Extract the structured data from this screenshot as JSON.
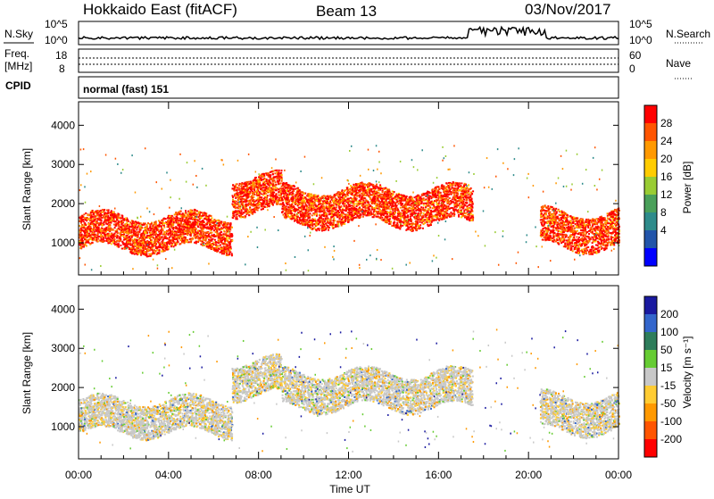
{
  "header": {
    "station": "Hokkaido East (fitACF)",
    "beam": "Beam 13",
    "date": "03/Nov/2017"
  },
  "noise_panel": {
    "left_label": "N.Sky",
    "right_label": "N.Search",
    "left_ticks": [
      "10^5",
      "10^0"
    ],
    "right_ticks": [
      "10^5",
      "10^0"
    ]
  },
  "freq_panel": {
    "left_label_line1": "Freq.",
    "left_label_line2": "[MHz]",
    "right_label": "Nave",
    "left_ticks": [
      "18",
      "8"
    ],
    "right_ticks": [
      "60",
      "0"
    ]
  },
  "cpid_panel": {
    "label": "CPID",
    "value": "normal (fast) 151"
  },
  "chart_data": [
    {
      "type": "heatmap",
      "panel": "power",
      "ylabel": "Slant Range [km]",
      "xlabel": "",
      "ylim": [
        180,
        4600
      ],
      "yticks": [
        "1000",
        "2000",
        "3000",
        "4000"
      ],
      "xticks": [
        "00:00",
        "04:00",
        "08:00",
        "12:00",
        "16:00",
        "20:00",
        "00:00"
      ],
      "colorbar": {
        "label": "Power [dB]",
        "ticks": [
          "28",
          "24",
          "20",
          "16",
          "12",
          "8",
          "4"
        ],
        "colors": [
          "#ff0000",
          "#ff5500",
          "#ff9900",
          "#ffcc00",
          "#99cc33",
          "#4aa05a",
          "#2e8b8b",
          "#2255aa",
          "#0000ff"
        ]
      },
      "bands": [
        {
          "t0": 0.0,
          "t1": 6.8,
          "r0": 850,
          "r1": 1700,
          "level": "high"
        },
        {
          "t0": 6.8,
          "t1": 9.0,
          "r0": 1800,
          "r1": 2700,
          "level": "high"
        },
        {
          "t0": 9.0,
          "t1": 17.5,
          "r0": 1500,
          "r1": 2400,
          "level": "high"
        },
        {
          "t0": 20.5,
          "t1": 24.0,
          "r0": 900,
          "r1": 1800,
          "level": "high"
        }
      ]
    },
    {
      "type": "heatmap",
      "panel": "velocity",
      "ylabel": "Slant Range [km]",
      "xlabel": "Time UT",
      "ylim": [
        180,
        4600
      ],
      "yticks": [
        "1000",
        "2000",
        "3000",
        "4000"
      ],
      "xticks": [
        "00:00",
        "04:00",
        "08:00",
        "12:00",
        "16:00",
        "20:00",
        "00:00"
      ],
      "colorbar": {
        "label": "Velocity [m s⁻¹]",
        "ticks": [
          "200",
          "100",
          "50",
          "15",
          "-15",
          "-50",
          "-100",
          "-200"
        ],
        "colors": [
          "#1a1aa0",
          "#3366cc",
          "#2e7d5b",
          "#66cc33",
          "#c8c8c8",
          "#ffcc33",
          "#ff9900",
          "#ff5500",
          "#ff0000"
        ]
      }
    }
  ]
}
